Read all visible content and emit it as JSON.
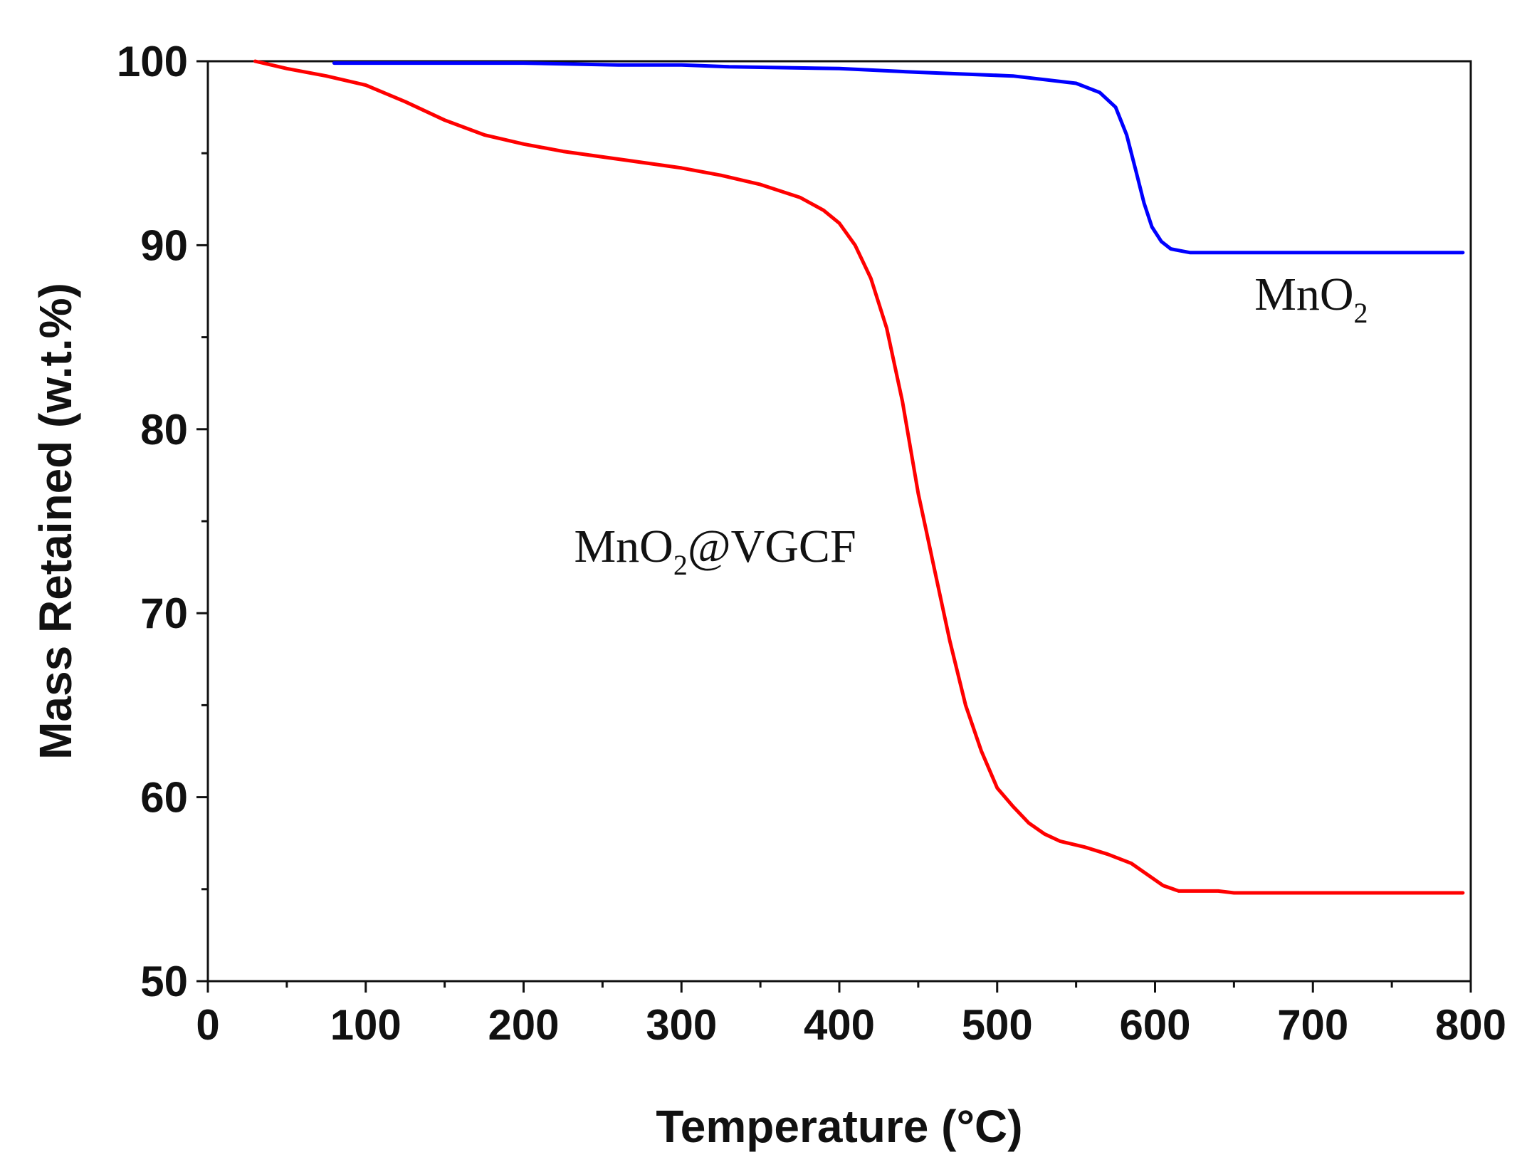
{
  "chart_data": {
    "type": "line",
    "title": "",
    "xlabel": "Temperature (",
    "xlabel_unit": "°C",
    "xlabel_close": ")",
    "ylabel": "Mass Retained (w.t.%)",
    "xlim": [
      0,
      800
    ],
    "ylim": [
      50,
      100
    ],
    "xticks": [
      0,
      100,
      200,
      300,
      400,
      500,
      600,
      700,
      800
    ],
    "yticks": [
      50,
      60,
      70,
      80,
      90,
      100
    ],
    "grid": false,
    "series": [
      {
        "name": "MnO2",
        "color": "#0000ff",
        "x": [
          80,
          150,
          200,
          260,
          300,
          330,
          400,
          450,
          480,
          510,
          530,
          550,
          565,
          575,
          582,
          588,
          593,
          598,
          604,
          610,
          616,
          622,
          630,
          650,
          700,
          750,
          795
        ],
        "y": [
          99.9,
          99.9,
          99.9,
          99.8,
          99.8,
          99.7,
          99.6,
          99.4,
          99.3,
          99.2,
          99.0,
          98.8,
          98.3,
          97.5,
          96.0,
          94.0,
          92.3,
          91.0,
          90.2,
          89.8,
          89.7,
          89.6,
          89.6,
          89.6,
          89.6,
          89.6,
          89.6
        ]
      },
      {
        "name": "MnO2@VGCF",
        "color": "#ff0000",
        "x": [
          30,
          50,
          75,
          100,
          125,
          150,
          175,
          200,
          225,
          250,
          275,
          300,
          325,
          350,
          375,
          390,
          400,
          410,
          420,
          430,
          440,
          450,
          455,
          460,
          470,
          480,
          490,
          500,
          510,
          520,
          530,
          540,
          555,
          570,
          585,
          595,
          605,
          615,
          625,
          640,
          650,
          700,
          750,
          795
        ],
        "y": [
          100,
          99.6,
          99.2,
          98.7,
          97.8,
          96.8,
          96.0,
          95.5,
          95.1,
          94.8,
          94.5,
          94.2,
          93.8,
          93.3,
          92.6,
          91.9,
          91.2,
          90.0,
          88.2,
          85.5,
          81.5,
          76.5,
          74.5,
          72.5,
          68.5,
          65.0,
          62.5,
          60.5,
          59.5,
          58.6,
          58.0,
          57.6,
          57.3,
          56.9,
          56.4,
          55.8,
          55.2,
          54.9,
          54.9,
          54.9,
          54.8,
          54.8,
          54.8,
          54.8
        ]
      }
    ],
    "annotations": [
      {
        "id": "mno2",
        "text": "MnO",
        "subscript": "2",
        "after": "",
        "x": 663,
        "y": 86.5
      },
      {
        "id": "composite",
        "text": "MnO",
        "subscript": "2",
        "after": "@VGCF",
        "x": 232,
        "y": 72.8
      }
    ]
  }
}
